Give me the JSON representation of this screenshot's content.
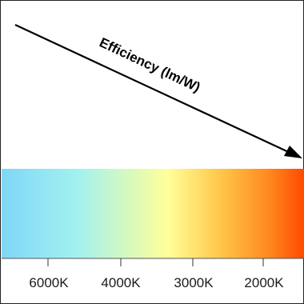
{
  "arrow": {
    "label": "Efficiency (lm/W)",
    "color": "#000000"
  },
  "spectrum": {
    "colors": [
      "#7fd7f7",
      "#a2f1f0",
      "#ffff99",
      "#ffc84a",
      "#ff8a20",
      "#ff4a00"
    ]
  },
  "axis": {
    "ticks": [
      {
        "label": "6000K"
      },
      {
        "label": "4000K"
      },
      {
        "label": "3000K"
      },
      {
        "label": "2000K"
      }
    ]
  }
}
